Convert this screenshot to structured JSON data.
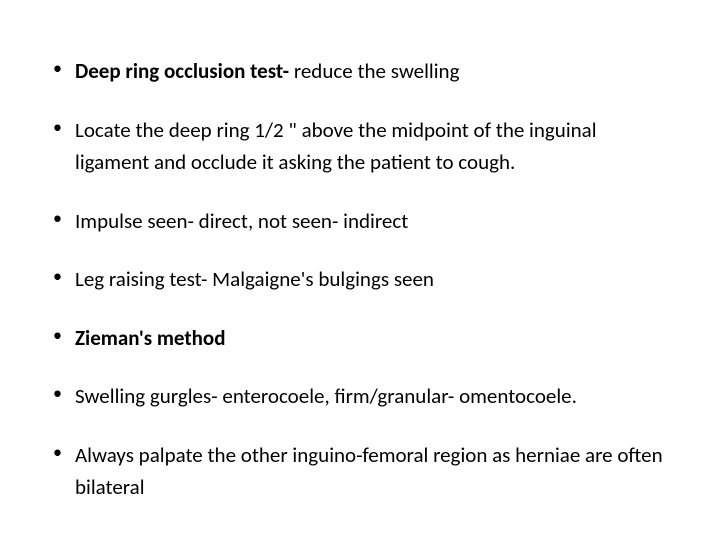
{
  "slide": {
    "text_color": "#000000",
    "background_color": "#ffffff",
    "font_size": 21,
    "bullets": [
      {
        "bold_part": "Deep ring occlusion test- ",
        "plain_part": "reduce the swelling"
      },
      {
        "plain_part": "Locate the deep ring 1/2 \" above the midpoint of the inguinal ligament and occlude it asking the patient to cough."
      },
      {
        "plain_part": "Impulse seen- direct, not seen- indirect"
      },
      {
        "plain_part": "Leg raising test- Malgaigne's bulgings seen"
      },
      {
        "bold_part": "Zieman's method"
      },
      {
        "plain_part": "Swelling gurgles- enterocoele, firm/granular- omentocoele."
      },
      {
        "plain_part": "Always  palpate the other inguino-femoral region as herniae are often bilateral"
      }
    ]
  }
}
